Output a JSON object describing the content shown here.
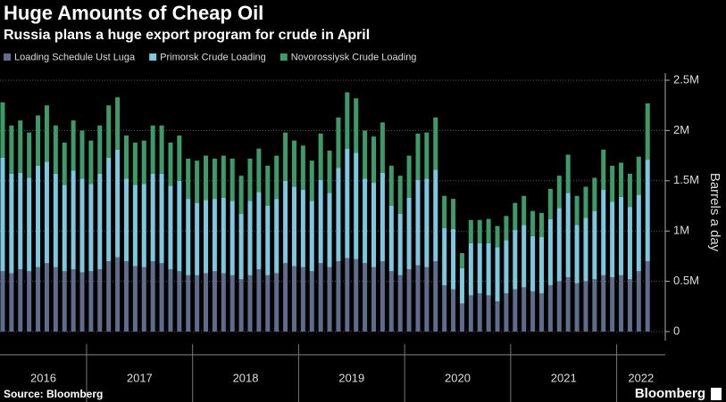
{
  "chart_data": {
    "type": "stacked_bar",
    "title": "Huge Amounts of Cheap Oil",
    "subtitle": "Russia plans a huge export program for crude in April",
    "y_axis_label": "Barrels a day",
    "source": "Source: Bloomberg",
    "brand": "Bloomberg",
    "year_labels": [
      "2016",
      "2017",
      "2018",
      "2019",
      "2020",
      "2021",
      "2022"
    ],
    "xlim": [
      -0.3,
      75
    ],
    "xticks": [
      9.5,
      21.5,
      33.5,
      45.5,
      57.5,
      69.5
    ],
    "ylim": [
      0,
      2500000
    ],
    "yticks": [
      0,
      {
        "value": 500000,
        "label": "0.5M"
      },
      {
        "value": 1000000,
        "label": "1M"
      },
      {
        "value": 1500000,
        "label": "1.5M"
      },
      {
        "value": 2000000,
        "label": "2M"
      },
      {
        "value": 2500000,
        "label": "2.5M"
      }
    ],
    "grid": true,
    "series": [
      {
        "name": "Loading Schedule Ust Luga",
        "color": "#5f6c8c",
        "values": [
          600000,
          580000,
          620000,
          600000,
          640000,
          680000,
          640000,
          600000,
          620000,
          590000,
          600000,
          620000,
          700000,
          740000,
          700000,
          650000,
          640000,
          700000,
          680000,
          620000,
          600000,
          560000,
          560000,
          580000,
          600000,
          580000,
          560000,
          520000,
          560000,
          620000,
          560000,
          580000,
          680000,
          650000,
          640000,
          600000,
          680000,
          640000,
          700000,
          730000,
          720000,
          680000,
          640000,
          700000,
          600000,
          560000,
          620000,
          660000,
          640000,
          700000,
          460000,
          420000,
          280000,
          360000,
          380000,
          360000,
          300000,
          380000,
          420000,
          440000,
          400000,
          380000,
          460000,
          500000,
          540000,
          480000,
          500000,
          520000,
          560000,
          540000,
          560000,
          520000,
          600000,
          700000
        ]
      },
      {
        "name": "Primorsk Crude Loading",
        "color": "#7ec8df",
        "values": [
          1130000,
          990000,
          960000,
          930000,
          1010000,
          1010000,
          930000,
          860000,
          980000,
          930000,
          870000,
          950000,
          1030000,
          1070000,
          820000,
          810000,
          830000,
          870000,
          890000,
          830000,
          900000,
          760000,
          720000,
          730000,
          720000,
          750000,
          740000,
          650000,
          740000,
          770000,
          690000,
          740000,
          820000,
          790000,
          770000,
          700000,
          830000,
          740000,
          930000,
          1090000,
          1060000,
          840000,
          840000,
          880000,
          650000,
          610000,
          710000,
          850000,
          880000,
          910000,
          570000,
          600000,
          350000,
          520000,
          500000,
          520000,
          540000,
          530000,
          590000,
          620000,
          550000,
          560000,
          660000,
          730000,
          840000,
          580000,
          630000,
          680000,
          850000,
          750000,
          780000,
          720000,
          760000,
          1010000
        ]
      },
      {
        "name": "Novorossiysk Crude Loading",
        "color": "#3f9a69",
        "values": [
          550000,
          480000,
          520000,
          450000,
          500000,
          560000,
          480000,
          420000,
          500000,
          480000,
          430000,
          480000,
          520000,
          520000,
          430000,
          420000,
          430000,
          480000,
          480000,
          430000,
          450000,
          400000,
          420000,
          440000,
          400000,
          420000,
          420000,
          380000,
          420000,
          430000,
          400000,
          430000,
          480000,
          460000,
          440000,
          400000,
          460000,
          420000,
          500000,
          560000,
          540000,
          480000,
          460000,
          500000,
          400000,
          380000,
          420000,
          460000,
          460000,
          520000,
          320000,
          300000,
          150000,
          230000,
          230000,
          240000,
          210000,
          240000,
          270000,
          290000,
          250000,
          240000,
          300000,
          320000,
          380000,
          290000,
          310000,
          330000,
          400000,
          360000,
          340000,
          330000,
          380000,
          560000
        ]
      }
    ]
  }
}
